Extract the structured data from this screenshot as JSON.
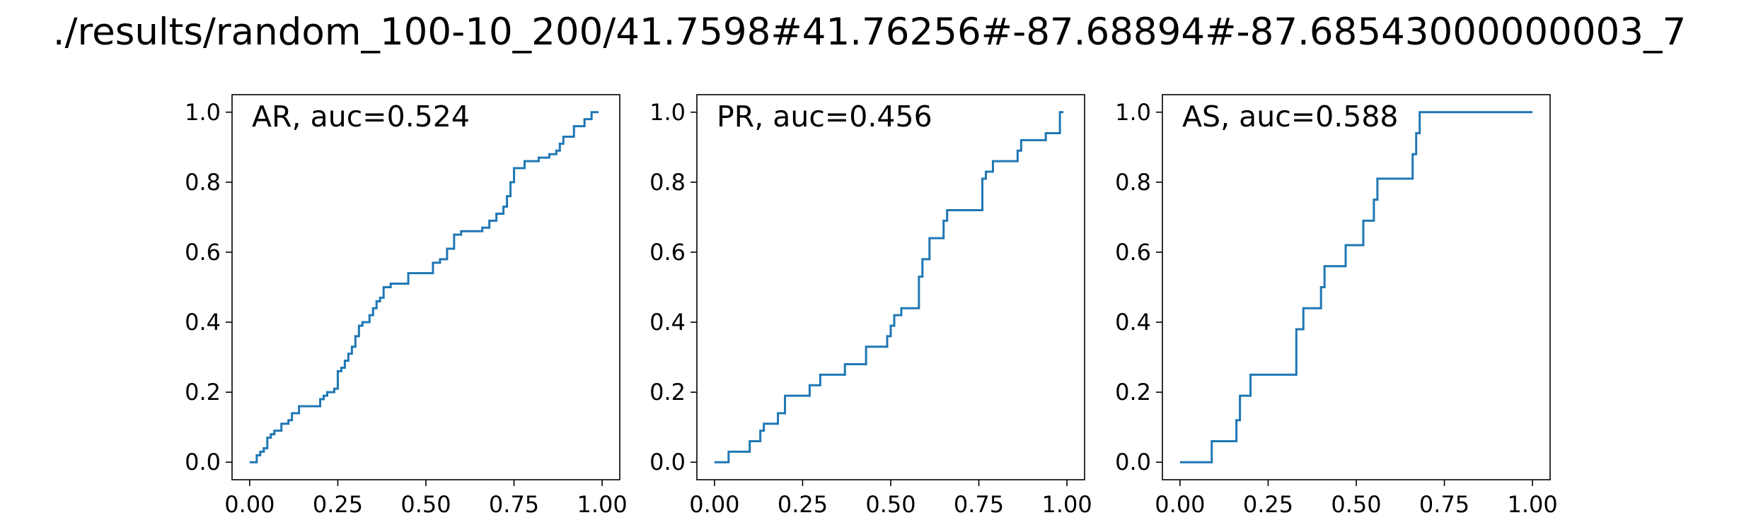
{
  "figure": {
    "title": "./results/random_100-10_200/41.7598#41.76256#-87.68894#-87.68543000000003_7"
  },
  "style": {
    "line_color": "#1f77b4",
    "axis_color": "#000000",
    "background": "#ffffff"
  },
  "chart_data": [
    {
      "type": "line",
      "title": "AR, auc=0.524",
      "grid": false,
      "xlim": [
        -0.05,
        1.05
      ],
      "ylim": [
        -0.05,
        1.05
      ],
      "xticks": [
        "0.00",
        "0.25",
        "0.50",
        "0.75",
        "1.00"
      ],
      "yticks": [
        "0.0",
        "0.2",
        "0.4",
        "0.6",
        "0.8",
        "1.0"
      ],
      "series": [
        {
          "x": [
            0.0,
            0.02,
            0.02,
            0.03,
            0.03,
            0.04,
            0.04,
            0.05,
            0.05,
            0.06,
            0.06,
            0.07,
            0.07,
            0.09,
            0.09,
            0.11,
            0.11,
            0.12,
            0.12,
            0.14,
            0.14,
            0.2,
            0.2,
            0.21,
            0.21,
            0.22,
            0.22,
            0.24,
            0.24,
            0.25,
            0.25,
            0.26,
            0.26,
            0.27,
            0.27,
            0.28,
            0.28,
            0.29,
            0.29,
            0.3,
            0.3,
            0.31,
            0.31,
            0.32,
            0.32,
            0.34,
            0.34,
            0.35,
            0.35,
            0.36,
            0.36,
            0.37,
            0.37,
            0.38,
            0.38,
            0.4,
            0.4,
            0.45,
            0.45,
            0.52,
            0.52,
            0.54,
            0.54,
            0.56,
            0.56,
            0.58,
            0.58,
            0.6,
            0.6,
            0.66,
            0.66,
            0.68,
            0.68,
            0.7,
            0.7,
            0.72,
            0.72,
            0.73,
            0.73,
            0.74,
            0.74,
            0.75,
            0.75,
            0.78,
            0.78,
            0.82,
            0.82,
            0.85,
            0.85,
            0.87,
            0.87,
            0.88,
            0.88,
            0.89,
            0.89,
            0.92,
            0.92,
            0.95,
            0.95,
            0.97,
            0.97,
            0.99
          ],
          "y": [
            0.0,
            0.0,
            0.02,
            0.02,
            0.03,
            0.03,
            0.04,
            0.04,
            0.07,
            0.07,
            0.08,
            0.08,
            0.09,
            0.09,
            0.11,
            0.11,
            0.12,
            0.12,
            0.14,
            0.14,
            0.16,
            0.16,
            0.18,
            0.18,
            0.19,
            0.19,
            0.2,
            0.2,
            0.21,
            0.21,
            0.26,
            0.26,
            0.27,
            0.27,
            0.29,
            0.29,
            0.31,
            0.31,
            0.33,
            0.33,
            0.36,
            0.36,
            0.39,
            0.39,
            0.4,
            0.4,
            0.42,
            0.42,
            0.44,
            0.44,
            0.46,
            0.46,
            0.47,
            0.47,
            0.5,
            0.5,
            0.51,
            0.51,
            0.54,
            0.54,
            0.57,
            0.57,
            0.58,
            0.58,
            0.61,
            0.61,
            0.65,
            0.65,
            0.66,
            0.66,
            0.67,
            0.67,
            0.69,
            0.69,
            0.71,
            0.71,
            0.73,
            0.73,
            0.76,
            0.76,
            0.8,
            0.8,
            0.84,
            0.84,
            0.86,
            0.86,
            0.87,
            0.87,
            0.88,
            0.88,
            0.89,
            0.89,
            0.91,
            0.91,
            0.93,
            0.93,
            0.96,
            0.96,
            0.98,
            0.98,
            1.0,
            1.0
          ]
        }
      ]
    },
    {
      "type": "line",
      "title": "PR, auc=0.456",
      "grid": false,
      "xlim": [
        -0.05,
        1.05
      ],
      "ylim": [
        -0.05,
        1.05
      ],
      "xticks": [
        "0.00",
        "0.25",
        "0.50",
        "0.75",
        "1.00"
      ],
      "yticks": [
        "0.0",
        "0.2",
        "0.4",
        "0.6",
        "0.8",
        "1.0"
      ],
      "series": [
        {
          "x": [
            0.0,
            0.04,
            0.04,
            0.1,
            0.1,
            0.13,
            0.13,
            0.14,
            0.14,
            0.18,
            0.18,
            0.2,
            0.2,
            0.27,
            0.27,
            0.3,
            0.3,
            0.37,
            0.37,
            0.43,
            0.43,
            0.49,
            0.49,
            0.5,
            0.5,
            0.51,
            0.51,
            0.53,
            0.53,
            0.58,
            0.58,
            0.59,
            0.59,
            0.61,
            0.61,
            0.65,
            0.65,
            0.66,
            0.66,
            0.76,
            0.76,
            0.77,
            0.77,
            0.79,
            0.79,
            0.86,
            0.86,
            0.87,
            0.87,
            0.94,
            0.94,
            0.98,
            0.98,
            0.99
          ],
          "y": [
            0.0,
            0.0,
            0.03,
            0.03,
            0.06,
            0.06,
            0.09,
            0.09,
            0.11,
            0.11,
            0.14,
            0.14,
            0.19,
            0.19,
            0.22,
            0.22,
            0.25,
            0.25,
            0.28,
            0.28,
            0.33,
            0.33,
            0.36,
            0.36,
            0.39,
            0.39,
            0.42,
            0.42,
            0.44,
            0.44,
            0.53,
            0.53,
            0.58,
            0.58,
            0.64,
            0.64,
            0.69,
            0.69,
            0.72,
            0.72,
            0.81,
            0.81,
            0.83,
            0.83,
            0.86,
            0.86,
            0.89,
            0.89,
            0.92,
            0.92,
            0.94,
            0.94,
            1.0,
            1.0
          ]
        }
      ]
    },
    {
      "type": "line",
      "title": "AS, auc=0.588",
      "grid": false,
      "xlim": [
        -0.05,
        1.05
      ],
      "ylim": [
        -0.05,
        1.05
      ],
      "xticks": [
        "0.00",
        "0.25",
        "0.50",
        "0.75",
        "1.00"
      ],
      "yticks": [
        "0.0",
        "0.2",
        "0.4",
        "0.6",
        "0.8",
        "1.0"
      ],
      "series": [
        {
          "x": [
            0.0,
            0.09,
            0.09,
            0.16,
            0.16,
            0.17,
            0.17,
            0.2,
            0.2,
            0.33,
            0.33,
            0.35,
            0.35,
            0.4,
            0.4,
            0.41,
            0.41,
            0.47,
            0.47,
            0.52,
            0.52,
            0.55,
            0.55,
            0.56,
            0.56,
            0.66,
            0.66,
            0.67,
            0.67,
            0.68,
            0.68,
            1.0
          ],
          "y": [
            0.0,
            0.0,
            0.06,
            0.06,
            0.12,
            0.12,
            0.19,
            0.19,
            0.25,
            0.25,
            0.38,
            0.38,
            0.44,
            0.44,
            0.5,
            0.5,
            0.56,
            0.56,
            0.62,
            0.62,
            0.69,
            0.69,
            0.75,
            0.75,
            0.81,
            0.81,
            0.88,
            0.88,
            0.94,
            0.94,
            1.0,
            1.0
          ]
        }
      ]
    }
  ]
}
